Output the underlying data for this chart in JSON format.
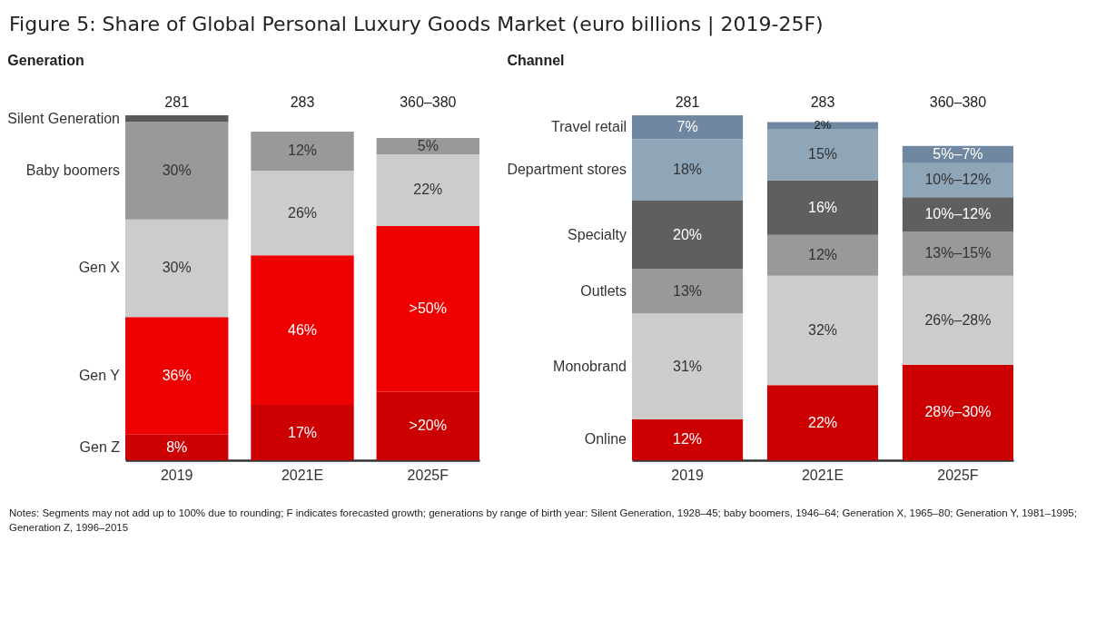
{
  "chart_data": [
    {
      "type": "bar",
      "title": "Figure 5: Share of Global Personal Luxury Goods Market (euro billions | 2019-25F)",
      "subtitle": "Generation",
      "stacked": true,
      "legend": false,
      "categories": [
        "2019",
        "2021E",
        "2025F"
      ],
      "series": [
        {
          "name": "Gen Z",
          "color": "#cc0000",
          "values": [
            8,
            17,
            21
          ],
          "value_labels": [
            "8%",
            "17%",
            ">20%"
          ]
        },
        {
          "name": "Gen Y",
          "color": "#ee0000",
          "values": [
            36,
            46,
            51
          ],
          "value_labels": [
            "36%",
            "46%",
            ">50%"
          ]
        },
        {
          "name": "Gen X",
          "color": "#cccccc",
          "values": [
            30,
            26,
            22
          ],
          "value_labels": [
            "30%",
            "26%",
            "22%"
          ]
        },
        {
          "name": "Baby boomers",
          "color": "#999999",
          "values": [
            30,
            12,
            5
          ],
          "value_labels": [
            "30%",
            "12%",
            "5%"
          ]
        },
        {
          "name": "Silent Generation",
          "color": "#5a5a5a",
          "values": [
            2,
            null,
            null
          ],
          "value_labels": [
            null,
            null,
            null
          ]
        }
      ],
      "annotations": [
        "281",
        "283",
        "360–380",
        "Notes: Segments may not add up to 100% due to rounding; F indicates forecasted growth; generations by range of birth year: Silent Generation, 1928–45; baby boomers, 1946–64; Generation X, 1965–80; Generation Y, 1981–1995; Generation Z, 1996–2015"
      ]
    },
    {
      "type": "bar",
      "subtitle": "Channel",
      "stacked": true,
      "legend": false,
      "categories": [
        "2019",
        "2021E",
        "2025F"
      ],
      "annotations": [
        "281",
        "283",
        "360–380"
      ],
      "series": [
        {
          "name": "Online",
          "color": "#cc0000",
          "values": [
            12,
            22,
            28
          ],
          "value_labels": [
            "12%",
            "22%",
            "28%–30%"
          ]
        },
        {
          "name": "Monobrand",
          "color": "#cccccc",
          "values": [
            31,
            32,
            26
          ],
          "value_labels": [
            "31%",
            "32%",
            "26%–28%"
          ]
        },
        {
          "name": "Outlets",
          "color": "#999999",
          "values": [
            13,
            12,
            13
          ],
          "value_labels": [
            "13%",
            "12%",
            "13%–15%"
          ]
        },
        {
          "name": "Specialty",
          "color": "#5f5f5f",
          "values": [
            20,
            16,
            10
          ],
          "value_labels": [
            "20%",
            "16%",
            "10%–12%"
          ]
        },
        {
          "name": "Department stores",
          "color": "#8fa5b8",
          "values": [
            18,
            15,
            10
          ],
          "value_labels": [
            "18%",
            "15%",
            "10%–12%"
          ]
        },
        {
          "name": "Travel retail",
          "color": "#6f87a0",
          "values": [
            7,
            2,
            5
          ],
          "value_labels": [
            "7%",
            "2%",
            "5%–7%"
          ]
        }
      ]
    }
  ]
}
